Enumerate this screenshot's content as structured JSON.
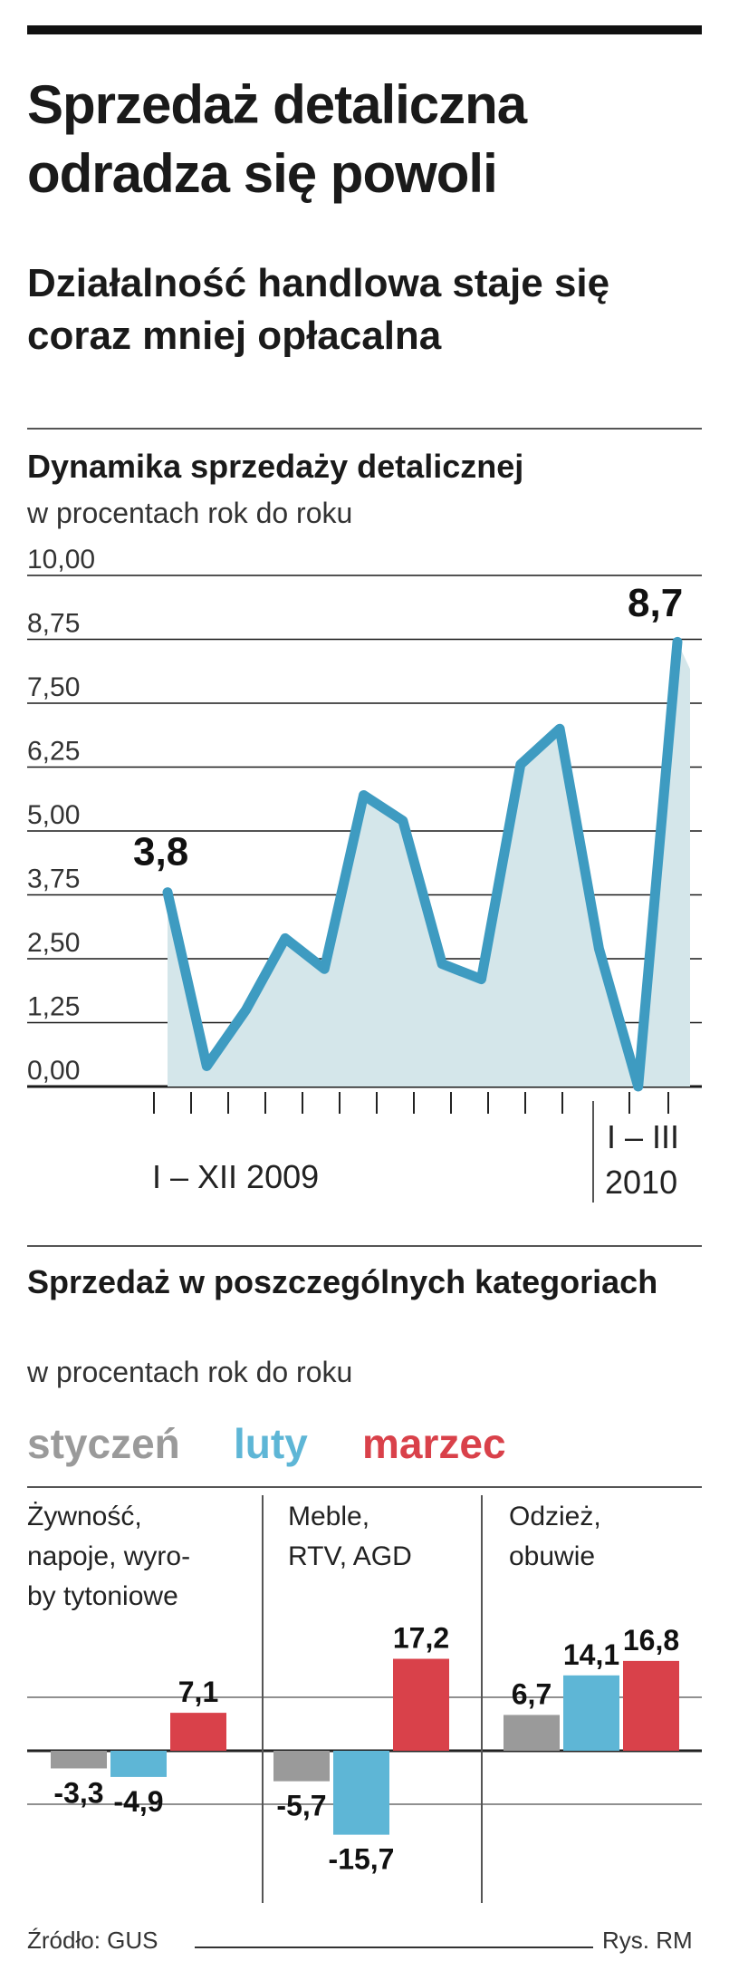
{
  "title": "Sprzedaż detaliczna odradza się powoli",
  "subtitle": "Działalność handlowa staje się coraz mniej opłacalna",
  "chart_data": [
    {
      "type": "area",
      "title": "Dynamika sprzedaży detalicznej",
      "unit": "w procentach rok do roku",
      "ylim": [
        0,
        10
      ],
      "yticks": [
        "10,00",
        "8,75",
        "7,50",
        "6,25",
        "5,00",
        "3,75",
        "2,50",
        "1,25",
        "0,00"
      ],
      "xlabel_2009": "I – XII 2009",
      "xlabel_2010_top": "I – III",
      "xlabel_2010_bottom": "2010",
      "values": [
        3.8,
        0.4,
        1.5,
        2.9,
        2.3,
        5.7,
        5.2,
        2.4,
        2.1,
        6.3,
        7.0,
        2.7,
        0.0,
        8.7
      ],
      "annotations": {
        "first": "3,8",
        "last": "8,7"
      },
      "colors": {
        "line": "#3e9bc1",
        "fill": "#d4e6ea",
        "grid": "#1a1a1a"
      }
    },
    {
      "type": "bar",
      "title": "Sprzedaż w poszczególnych kategoriach",
      "unit": "w procentach rok do roku",
      "legend": [
        {
          "name": "styczeń",
          "color": "#9a9a9a"
        },
        {
          "name": "luty",
          "color": "#5eb6d6"
        },
        {
          "name": "marzec",
          "color": "#d9414a"
        }
      ],
      "categories": [
        {
          "label": [
            "Żywność,",
            "napoje, wyro-",
            "by tytoniowe"
          ],
          "values": [
            -3.3,
            -4.9,
            7.1
          ],
          "labels": [
            "-3,3",
            "-4,9",
            "7,1"
          ]
        },
        {
          "label": [
            "Meble,",
            "RTV, AGD"
          ],
          "values": [
            -5.7,
            -15.7,
            17.2
          ],
          "labels": [
            "-5,7",
            "-15,7",
            "17,2"
          ]
        },
        {
          "label": [
            "Odzież,",
            "obuwie"
          ],
          "values": [
            6.7,
            14.1,
            16.8
          ],
          "labels": [
            "6,7",
            "14,1",
            "16,8"
          ]
        }
      ]
    }
  ],
  "source": "Źródło: GUS",
  "credit": "Rys. RM"
}
